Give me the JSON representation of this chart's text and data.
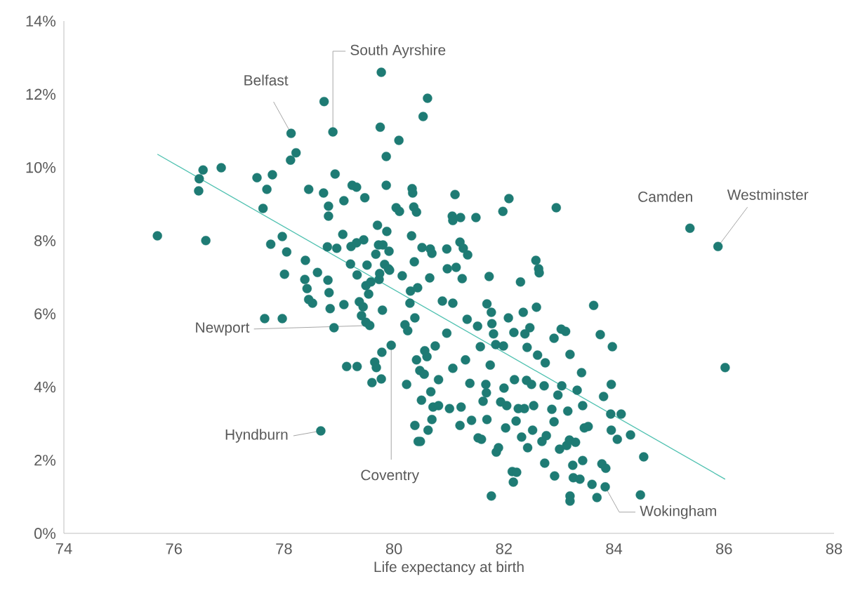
{
  "chart_data": {
    "type": "scatter",
    "xlabel": "Life expectancy at birth",
    "xlim": [
      74,
      88
    ],
    "ylim": [
      0,
      14
    ],
    "xticks": [
      74,
      76,
      78,
      80,
      82,
      84,
      86,
      88
    ],
    "yticks": [
      {
        "value": 0,
        "label": "0%"
      },
      {
        "value": 2,
        "label": "2%"
      },
      {
        "value": 4,
        "label": "4%"
      },
      {
        "value": 6,
        "label": "6%"
      },
      {
        "value": 8,
        "label": "8%"
      },
      {
        "value": 10,
        "label": "10%"
      },
      {
        "value": 12,
        "label": "12%"
      },
      {
        "value": 14,
        "label": "14%"
      }
    ],
    "marker": "circle",
    "series": [
      {
        "type": "scatter",
        "color": "#1e7b74",
        "x": [
          75.7,
          76.45,
          76.46,
          76.53,
          76.58,
          76.86,
          77.51,
          77.62,
          77.69,
          77.76,
          77.79,
          77.65,
          77.97,
          77.97,
          78.01,
          78.05,
          78.12,
          78.22,
          78.39,
          78.38,
          78.42,
          78.45,
          78.52,
          78.45,
          78.61,
          78.72,
          78.73,
          78.79,
          78.8,
          78.81,
          78.81,
          78.82,
          78.84,
          78.91,
          78.93,
          78.96,
          79.07,
          79.09,
          79.09,
          79.14,
          79.21,
          79.22,
          79.24,
          79.32,
          79.32,
          79.33,
          79.33,
          79.37,
          79.41,
          79.44,
          79.45,
          79.47,
          79.49,
          79.49,
          79.51,
          79.54,
          79.58,
          79.6,
          79.65,
          79.67,
          79.68,
          79.7,
          79.72,
          79.73,
          79.74,
          79.75,
          79.77,
          79.77,
          79.78,
          79.79,
          79.8,
          79.83,
          79.86,
          79.86,
          79.87,
          79.9,
          79.91,
          79.92,
          80.04,
          80.09,
          80.1,
          80.15,
          80.2,
          80.23,
          80.25,
          80.29,
          80.3,
          80.32,
          80.33,
          80.34,
          80.36,
          80.37,
          80.38,
          80.41,
          80.38,
          80.41,
          80.43,
          80.44,
          80.47,
          80.48,
          80.5,
          80.51,
          80.53,
          80.55,
          80.56,
          80.6,
          80.61,
          80.65,
          80.66,
          80.67,
          80.69,
          80.69,
          80.71,
          80.62,
          80.75,
          80.81,
          80.81,
          80.88,
          80.96,
          80.96,
          80.97,
          81.01,
          81.07,
          81.07,
          81.11,
          81.13,
          81.06,
          81.07,
          81.2,
          81.21,
          81.22,
          81.2,
          81.24,
          81.26,
          81.3,
          81.33,
          81.34,
          81.38,
          81.41,
          81.49,
          81.52,
          81.53,
          81.57,
          81.59,
          81.62,
          81.67,
          81.68,
          81.69,
          81.69,
          81.73,
          81.75,
          81.77,
          81.77,
          81.78,
          81.81,
          81.85,
          81.86,
          81.9,
          81.94,
          81.98,
          81.99,
          82.0,
          82.03,
          82.05,
          82.08,
          82.09,
          82.15,
          82.17,
          82.18,
          82.19,
          82.22,
          82.23,
          82.26,
          82.3,
          82.32,
          82.35,
          82.37,
          82.38,
          82.41,
          82.42,
          82.43,
          82.47,
          82.5,
          82.52,
          82.54,
          82.58,
          82.59,
          82.61,
          82.63,
          82.64,
          82.69,
          82.73,
          82.74,
          82.75,
          82.77,
          82.87,
          82.91,
          82.91,
          82.92,
          82.95,
          82.98,
          83.01,
          83.05,
          83.04,
          83.12,
          83.14,
          83.16,
          83.19,
          83.2,
          83.2,
          83.2,
          83.25,
          83.26,
          83.3,
          83.33,
          83.38,
          83.41,
          83.43,
          83.43,
          83.46,
          83.53,
          83.6,
          83.63,
          83.69,
          83.75,
          83.78,
          83.81,
          83.85,
          83.94,
          83.95,
          83.95,
          83.97,
          84.06,
          84.13,
          84.3,
          84.48,
          84.54,
          86.02,
          78.13,
          78.89,
          85.38,
          85.89,
          79.56,
          78.67,
          79.95,
          83.84
        ],
        "values": [
          8.13,
          9.36,
          9.69,
          9.93,
          8.0,
          9.99,
          9.72,
          8.88,
          9.4,
          7.9,
          9.8,
          5.87,
          5.87,
          8.11,
          7.08,
          7.69,
          10.2,
          10.4,
          7.46,
          6.94,
          6.69,
          6.39,
          6.29,
          9.4,
          7.13,
          9.3,
          11.8,
          7.83,
          6.92,
          8.94,
          8.67,
          6.58,
          6.14,
          5.62,
          9.82,
          7.79,
          8.17,
          9.09,
          6.25,
          4.56,
          7.36,
          7.84,
          9.51,
          9.46,
          7.94,
          4.56,
          7.06,
          6.33,
          5.95,
          6.19,
          8.02,
          9.17,
          6.77,
          5.77,
          7.33,
          6.54,
          6.87,
          4.12,
          4.68,
          7.63,
          4.53,
          8.42,
          7.88,
          6.94,
          7.1,
          11.1,
          12.6,
          4.22,
          4.95,
          6.1,
          7.88,
          7.35,
          10.3,
          9.51,
          8.25,
          7.23,
          7.71,
          7.19,
          8.9,
          10.74,
          8.8,
          7.04,
          5.7,
          4.07,
          5.54,
          6.29,
          6.62,
          8.13,
          9.42,
          9.3,
          8.92,
          7.42,
          5.89,
          4.74,
          2.95,
          8.78,
          6.71,
          2.51,
          4.45,
          2.51,
          3.64,
          7.81,
          11.39,
          4.35,
          4.99,
          4.83,
          11.89,
          6.98,
          7.77,
          3.87,
          7.65,
          3.11,
          3.45,
          2.82,
          5.12,
          4.2,
          3.49,
          6.35,
          5.47,
          7.77,
          7.23,
          3.41,
          6.29,
          4.51,
          9.26,
          7.27,
          8.67,
          8.55,
          7.96,
          8.63,
          3.45,
          2.95,
          6.96,
          7.79,
          4.74,
          5.85,
          7.61,
          4.1,
          3.09,
          8.63,
          5.66,
          2.61,
          5.1,
          2.57,
          3.61,
          4.07,
          3.84,
          6.27,
          3.11,
          7.02,
          4.6,
          1.02,
          6.04,
          5.73,
          5.45,
          5.16,
          2.22,
          2.34,
          3.59,
          8.8,
          5.12,
          3.97,
          2.88,
          3.49,
          5.89,
          9.15,
          1.69,
          1.4,
          5.49,
          4.2,
          3.07,
          1.67,
          3.41,
          6.87,
          2.63,
          6.04,
          3.41,
          5.45,
          4.18,
          5.08,
          2.34,
          5.62,
          4.07,
          2.82,
          3.49,
          7.46,
          6.18,
          4.87,
          7.23,
          7.12,
          2.51,
          4.03,
          1.92,
          4.66,
          2.67,
          3.39,
          5.33,
          3.05,
          1.57,
          8.9,
          3.78,
          2.3,
          4.03,
          5.58,
          5.52,
          2.4,
          3.34,
          2.55,
          1.02,
          0.88,
          4.89,
          1.86,
          1.52,
          2.49,
          3.91,
          1.48,
          4.39,
          3.49,
          1.99,
          2.88,
          2.92,
          1.34,
          6.23,
          0.98,
          5.43,
          1.9,
          3.74,
          1.78,
          3.26,
          4.07,
          2.82,
          5.1,
          2.57,
          3.26,
          2.69,
          1.05,
          2.09,
          4.53,
          10.93,
          10.97,
          8.34,
          7.84,
          5.68,
          2.8,
          5.14,
          1.27
        ]
      },
      {
        "type": "line",
        "marker": "none",
        "color": "#4fc1b0",
        "x": [
          75.7,
          86.02
        ],
        "values": [
          10.36,
          1.48
        ]
      }
    ],
    "annotations": [
      {
        "text": "Belfast",
        "x": 78.13,
        "y": 10.93
      },
      {
        "text": "South Ayrshire",
        "x": 78.89,
        "y": 10.97
      },
      {
        "text": "Camden",
        "x": 85.38,
        "y": 8.34
      },
      {
        "text": "Westminster",
        "x": 85.89,
        "y": 7.84
      },
      {
        "text": "Newport",
        "x": 79.56,
        "y": 5.68
      },
      {
        "text": "Hyndburn",
        "x": 78.67,
        "y": 2.8
      },
      {
        "text": "Coventry",
        "x": 79.95,
        "y": 5.14
      },
      {
        "text": "Wokingham",
        "x": 83.84,
        "y": 1.27
      }
    ]
  }
}
